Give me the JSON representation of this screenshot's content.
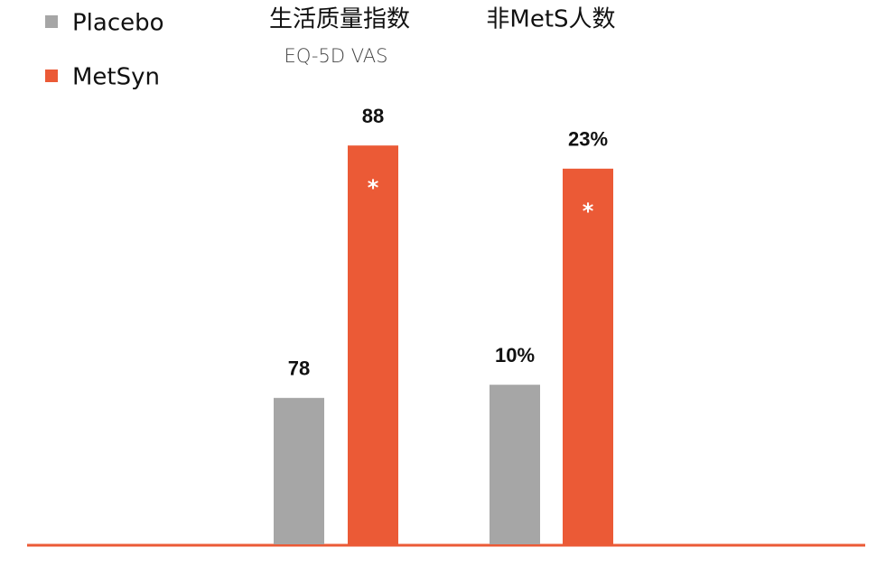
{
  "chart_data": [
    {
      "type": "bar",
      "title": "生活质量指数",
      "subtitle": "EQ-5D VAS",
      "ylim": [
        72.2,
        88.4
      ],
      "annotation": "*",
      "series": [
        {
          "name": "Placebo",
          "color": "#a6a6a6",
          "values": [
            78
          ]
        },
        {
          "name": "MetSyn",
          "color": "#eb5a36",
          "values": [
            88
          ]
        }
      ]
    },
    {
      "type": "bar",
      "title": "非MetS人数",
      "ylim": [
        0.4,
        25
      ],
      "annotation": "*",
      "series": [
        {
          "name": "Placebo",
          "color": "#a6a6a6",
          "values": [
            10
          ],
          "value_labels": [
            "10%"
          ]
        },
        {
          "name": "MetSyn",
          "color": "#eb5a36",
          "values": [
            23
          ],
          "value_labels": [
            "23%"
          ]
        }
      ]
    }
  ]
}
